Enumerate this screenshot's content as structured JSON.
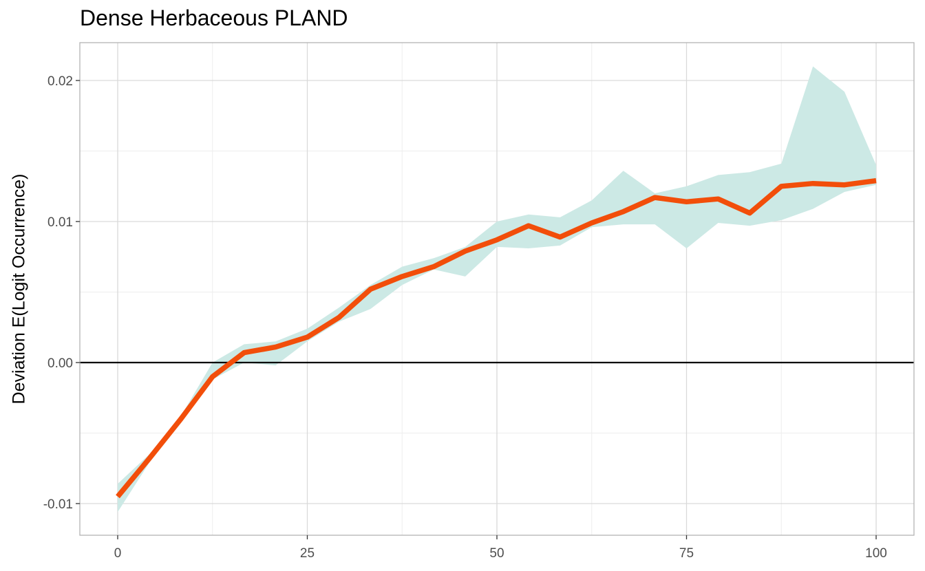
{
  "chart_data": {
    "type": "line",
    "title": "Dense Herbaceous PLAND",
    "xlabel": "",
    "ylabel": "Deviation E(Logit Occurrence)",
    "xlim": [
      0,
      100
    ],
    "ylim": [
      -0.0118,
      0.0226
    ],
    "x_ticks": [
      "0",
      "25",
      "50",
      "75",
      "100"
    ],
    "y_ticks": [
      "-0.01",
      "0.00",
      "0.01",
      "0.02"
    ],
    "grid": true,
    "reference_line_y": 0,
    "series": [
      {
        "x": [
          0,
          4.17,
          8.33,
          12.5,
          16.67,
          20.83,
          25,
          29.17,
          33.33,
          37.5,
          41.67,
          45.83,
          50,
          54.17,
          58.33,
          62.5,
          66.67,
          70.83,
          75,
          79.17,
          83.33,
          87.5,
          91.67,
          95.83,
          100
        ],
        "values": [
          -0.0095,
          -0.0068,
          -0.004,
          -0.001,
          0.0007,
          0.0011,
          0.0018,
          0.0032,
          0.0052,
          0.0061,
          0.0068,
          0.0079,
          0.0087,
          0.0097,
          0.0089,
          0.0099,
          0.0107,
          0.0117,
          0.0114,
          0.0116,
          0.0106,
          0.0125,
          0.0127,
          0.0126,
          0.0129
        ],
        "lower": [
          -0.0106,
          -0.0071,
          -0.0043,
          -0.0012,
          0.0,
          -0.0002,
          0.0015,
          0.0029,
          0.0038,
          0.0055,
          0.0066,
          0.0061,
          0.0082,
          0.0081,
          0.0083,
          0.0096,
          0.0098,
          0.0098,
          0.0081,
          0.0099,
          0.0097,
          0.0101,
          0.0109,
          0.0121,
          0.0126
        ],
        "upper": [
          -0.0086,
          -0.0065,
          -0.0038,
          0.0,
          0.0013,
          0.0015,
          0.0024,
          0.0039,
          0.0055,
          0.0068,
          0.0074,
          0.0082,
          0.01,
          0.0105,
          0.0103,
          0.0115,
          0.0136,
          0.012,
          0.0125,
          0.0133,
          0.0135,
          0.0141,
          0.021,
          0.0192,
          0.014
        ]
      }
    ],
    "colors": {
      "line": "#F24E0A",
      "ribbon": "#CCE9E5",
      "panel_border": "#B3B3B3",
      "grid_major": "#D9D9D9",
      "grid_minor": "#EDEDED",
      "zero_line": "#000000"
    }
  }
}
